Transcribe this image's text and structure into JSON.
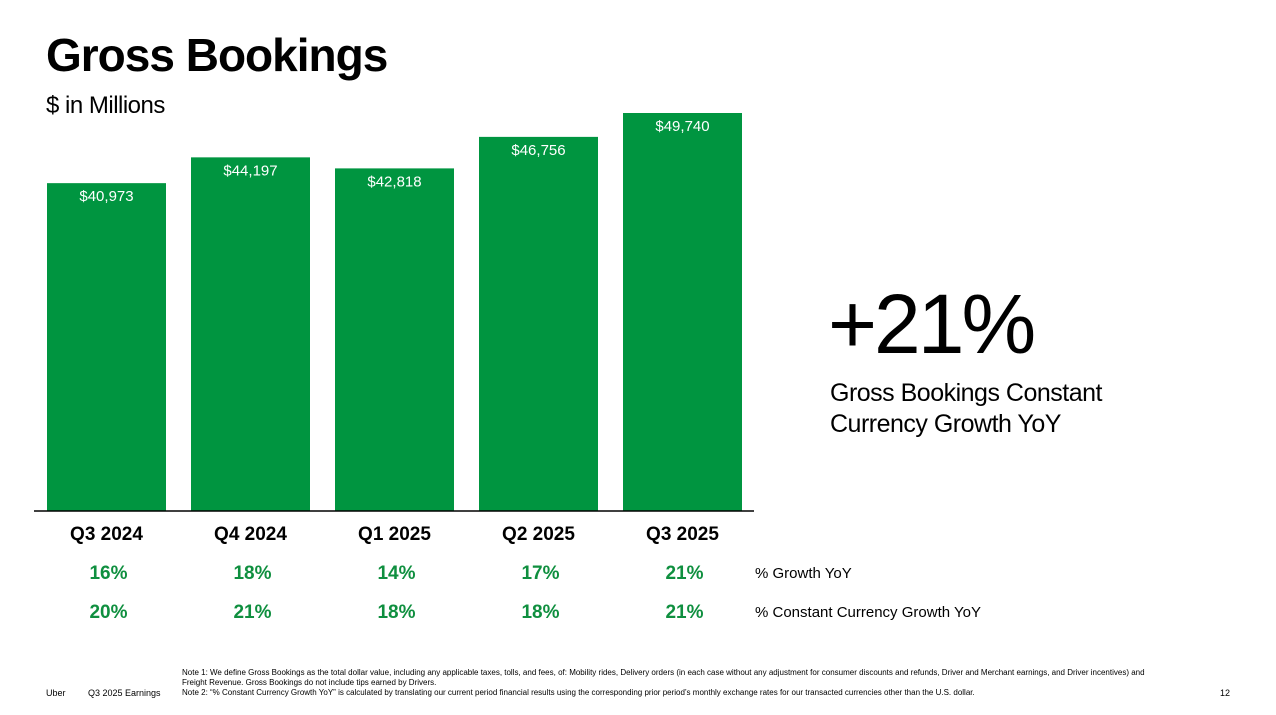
{
  "header": {
    "title": "Gross Bookings",
    "subtitle": "$ in Millions"
  },
  "colors": {
    "bar": "#009540",
    "growth_text": "#0f8f3f",
    "axis": "#000000"
  },
  "chart_data": {
    "type": "bar",
    "categories": [
      "Q3 2024",
      "Q4 2024",
      "Q1 2025",
      "Q2 2025",
      "Q3 2025"
    ],
    "values": [
      40973,
      44197,
      42818,
      46756,
      49740
    ],
    "value_labels": [
      "$40,973",
      "$44,197",
      "$42,818",
      "$46,756",
      "$49,740"
    ],
    "title": "Gross Bookings",
    "ylabel": "$ in Millions",
    "xlabel": "",
    "ylim": [
      0,
      50000
    ],
    "grid": false
  },
  "growth_rows": [
    {
      "label": "% Growth YoY",
      "values": [
        "16%",
        "18%",
        "14%",
        "17%",
        "21%"
      ]
    },
    {
      "label": "% Constant Currency Growth YoY",
      "values": [
        "20%",
        "21%",
        "18%",
        "18%",
        "21%"
      ]
    }
  ],
  "highlight": {
    "value": "+21%",
    "caption": "Gross Bookings Constant Currency Growth YoY"
  },
  "footer": {
    "brand": "Uber",
    "deck": "Q3 2025 Earnings",
    "note1": "Note 1: We define Gross Bookings as the total dollar value, including any applicable taxes, tolls, and fees, of: Mobility rides, Delivery orders (in each case without any adjustment for consumer discounts and refunds, Driver and Merchant earnings, and Driver incentives) and Freight Revenue. Gross Bookings do not include tips earned by Drivers.",
    "note2": "Note 2: “% Constant Currency Growth YoY” is calculated by translating our current period financial results using the corresponding prior period’s monthly exchange rates for our transacted currencies other than the U.S. dollar.",
    "page_number": "12"
  }
}
